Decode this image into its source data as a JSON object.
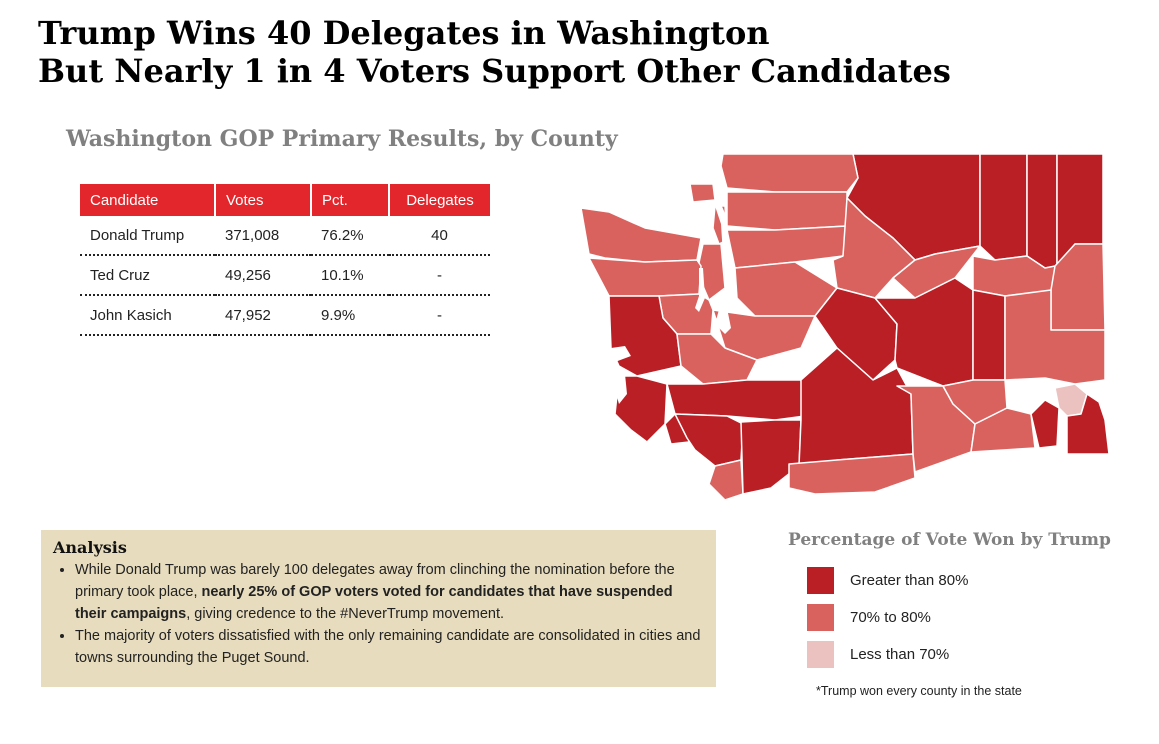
{
  "headline": {
    "line1": "Trump Wins 40 Delegates in Washington",
    "line2": "But Nearly 1 in 4 Voters Support Other Candidates"
  },
  "subtitle": "Washington GOP Primary Results, by County",
  "results_table": {
    "headers": [
      "Candidate",
      "Votes",
      "Pct.",
      "Delegates"
    ],
    "rows": [
      [
        "Donald Trump",
        "371,008",
        "76.2%",
        "40"
      ],
      [
        "Ted Cruz",
        "49,256",
        "10.1%",
        "-"
      ],
      [
        "John Kasich",
        "47,952",
        "9.9%",
        "-"
      ]
    ]
  },
  "analysis": {
    "heading": "Analysis",
    "bullet1_a": "While Donald Trump was barely 100 delegates away from clinching the nomination before the primary took place, ",
    "bullet1_b": "nearly 25% of GOP voters voted for candidates that have suspended their campaigns",
    "bullet1_c": ", giving credence to the #NeverTrump movement.",
    "bullet2": "The majority of voters dissatisfied with the only remaining candidate are consolidated in cities and towns surrounding the Puget Sound."
  },
  "legend": {
    "title": "Percentage of Vote Won by Trump",
    "items": [
      {
        "label": "Greater than 80%",
        "color": "#b91f25"
      },
      {
        "label": "70% to 80%",
        "color": "#d9625e"
      },
      {
        "label": "Less than 70%",
        "color": "#ebc2c0"
      }
    ]
  },
  "footnote": "*Trump won every county in the state",
  "map_colors": {
    "high": "#b91f25",
    "mid": "#d9625e",
    "low": "#ebc2c0",
    "water": "#ffffff"
  }
}
